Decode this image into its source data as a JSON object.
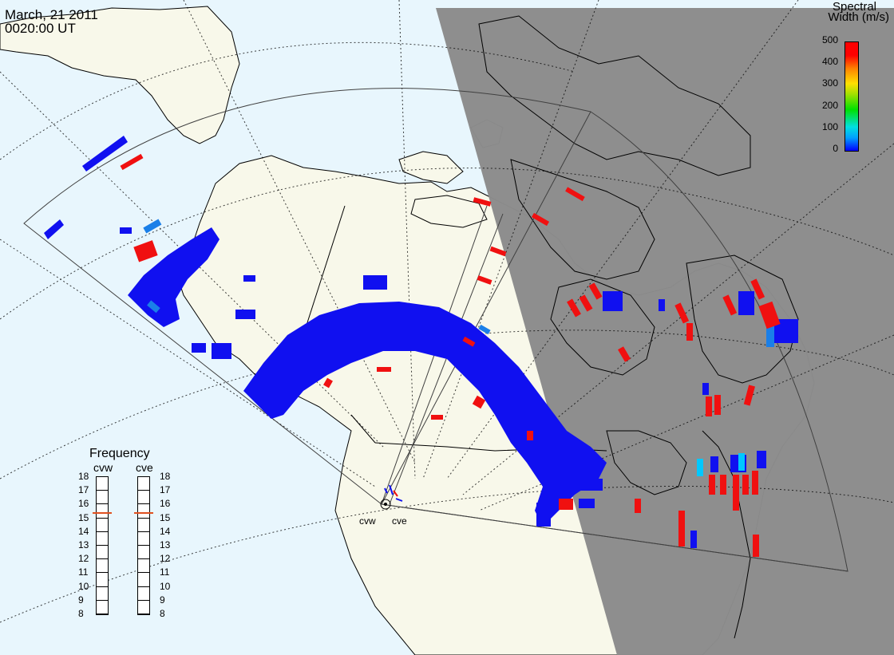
{
  "header": {
    "date": "March, 21 2011",
    "time": "0020:00 UT"
  },
  "colorbar": {
    "title_line1": "Spectral",
    "title_line2": "Width (m/s)",
    "ticks": [
      "500",
      "400",
      "300",
      "200",
      "100",
      "0"
    ],
    "colors": [
      "#0000ff",
      "#00a0ff",
      "#00e0e0",
      "#00e000",
      "#ffe000",
      "#ff8000",
      "#ff0000"
    ]
  },
  "frequency": {
    "title": "Frequency",
    "radar_west": "cvw",
    "radar_east": "cve",
    "ticks": [
      "18",
      "17",
      "16",
      "15",
      "14",
      "13",
      "12",
      "11",
      "10",
      "9",
      "8"
    ],
    "cvw_value": 15.3,
    "cve_value": 15.3
  },
  "map_labels": {
    "west_radar": "cvw",
    "east_radar": "cve"
  },
  "colors": {
    "ocean": "#e8f6fd",
    "land": "#f8f8ea",
    "night": "#8c8c8c",
    "low_width": "#1010f0",
    "high_width": "#f01010",
    "mid_width": "#1a7fe8"
  }
}
